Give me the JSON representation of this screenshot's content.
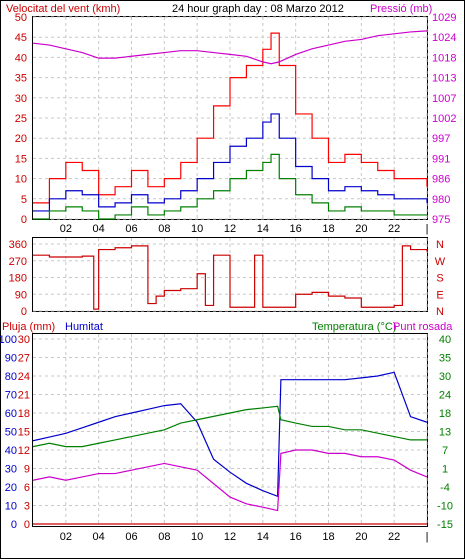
{
  "header": {
    "left_label": "Velocitat del vent (kmh)",
    "title": "24 hour graph day : 08 Marzo 2012",
    "right_label": "Pressió (mb)"
  },
  "colors": {
    "wind_gust": "#ff0000",
    "wind_avg": "#0000cc",
    "wind_min": "#008000",
    "pressure": "#cc00cc",
    "direction": "#cc0000",
    "humidity": "#0000cc",
    "temperature": "#008000",
    "dewpoint": "#cc00cc",
    "rain": "#cc0000",
    "grid": "#c8c8c8",
    "frame": "#000000"
  },
  "x_ticks": [
    "02",
    "04",
    "06",
    "08",
    "10",
    "12",
    "14",
    "16",
    "18",
    "20",
    "22",
    "|"
  ],
  "chart_data": [
    {
      "type": "line",
      "name": "wind-pressure",
      "title": "24 hour graph day : 08 Marzo 2012",
      "ylabel_left": "Velocitat del vent (kmh)",
      "ylabel_right": "Pressió (mb)",
      "y_left_ticks": [
        "0",
        "5",
        "10",
        "15",
        "20",
        "25",
        "30",
        "35",
        "40",
        "45",
        "50"
      ],
      "y_left_range": [
        0,
        50
      ],
      "y_right_ticks": [
        "975",
        "980",
        "986",
        "991",
        "997",
        "1002",
        "1007",
        "1013",
        "1018",
        "1024",
        "1029"
      ],
      "y_right_range": [
        975,
        1029
      ],
      "x_hours": [
        0,
        1,
        2,
        3,
        4,
        5,
        6,
        7,
        8,
        9,
        10,
        11,
        12,
        13,
        14,
        14.5,
        15,
        16,
        17,
        18,
        19,
        20,
        21,
        22,
        23,
        24
      ],
      "series": [
        {
          "key": "gust",
          "axis": "left",
          "values": [
            4,
            10,
            14,
            12,
            6,
            8,
            12,
            8,
            10,
            14,
            20,
            28,
            35,
            38,
            42,
            46,
            38,
            26,
            20,
            14,
            16,
            14,
            12,
            10,
            10,
            8
          ]
        },
        {
          "key": "avg",
          "axis": "left",
          "values": [
            2,
            5,
            7,
            6,
            3,
            4,
            6,
            4,
            5,
            7,
            10,
            14,
            18,
            20,
            24,
            26,
            20,
            13,
            10,
            7,
            8,
            7,
            6,
            5,
            5,
            4
          ]
        },
        {
          "key": "min",
          "axis": "left",
          "values": [
            0,
            2,
            3,
            2,
            0,
            1,
            3,
            1,
            2,
            3,
            5,
            7,
            10,
            12,
            14,
            16,
            10,
            6,
            4,
            2,
            3,
            2,
            2,
            1,
            1,
            1
          ]
        },
        {
          "key": "pressure",
          "axis": "right",
          "values": [
            1022,
            1021.5,
            1020.5,
            1019.5,
            1018,
            1018,
            1018.5,
            1019,
            1019.5,
            1020,
            1020,
            1019.5,
            1019,
            1018.5,
            1017,
            1016.5,
            1017,
            1019,
            1020.5,
            1021.5,
            1022.5,
            1023,
            1024,
            1024.5,
            1025,
            1025.3
          ]
        }
      ]
    },
    {
      "type": "line",
      "name": "wind-direction",
      "y_left_ticks": [
        "0",
        "90",
        "180",
        "270",
        "360"
      ],
      "y_left_range": [
        0,
        360
      ],
      "y_right_labels": [
        "N",
        "W",
        "S",
        "E",
        "N"
      ],
      "x_hours": [
        0,
        1,
        2,
        3,
        3.7,
        4,
        5,
        6,
        7,
        7.5,
        8,
        9,
        10,
        10.5,
        11,
        12,
        13,
        13.5,
        14,
        15,
        16,
        17,
        18,
        19,
        20,
        21,
        22,
        22.5,
        23,
        24
      ],
      "series": [
        {
          "key": "direction",
          "values": [
            300,
            290,
            290,
            295,
            10,
            330,
            340,
            350,
            40,
            80,
            110,
            120,
            200,
            30,
            300,
            20,
            20,
            300,
            20,
            20,
            90,
            100,
            80,
            70,
            20,
            20,
            30,
            350,
            330,
            320
          ]
        }
      ]
    },
    {
      "type": "line",
      "name": "rain-humidity-temperature",
      "header_left_1": "Pluja (mm)",
      "header_left_2": "Humitat",
      "header_right_1": "Temperatura (°C)",
      "header_right_2": "Punt rosada",
      "y_humidity_ticks": [
        "0",
        "10",
        "20",
        "30",
        "40",
        "50",
        "60",
        "70",
        "80",
        "90",
        "100"
      ],
      "y_rain_ticks": [
        "0",
        "3",
        "6",
        "9",
        "12",
        "15",
        "18",
        "21",
        "24",
        "27",
        "30"
      ],
      "y_temp_ticks": [
        "-15",
        "-10",
        "-4",
        "1",
        "7",
        "13",
        "18",
        "24",
        "30",
        "35",
        "40"
      ],
      "humidity_range": [
        0,
        100
      ],
      "temp_range": [
        -15,
        40
      ],
      "x_hours": [
        0,
        1,
        2,
        3,
        4,
        5,
        6,
        7,
        8,
        9,
        10,
        11,
        12,
        13,
        14,
        14.9,
        15.1,
        16,
        17,
        18,
        19,
        20,
        21,
        22,
        23,
        24
      ],
      "series": [
        {
          "key": "humidity",
          "axis": "humidity",
          "values": [
            45,
            47,
            49,
            52,
            55,
            58,
            60,
            62,
            64,
            65,
            55,
            35,
            28,
            22,
            18,
            15,
            78,
            78,
            78,
            78,
            78,
            79,
            80,
            82,
            58,
            55
          ]
        },
        {
          "key": "temperature",
          "axis": "temp",
          "values": [
            8,
            9,
            8,
            8,
            9,
            10,
            11,
            12,
            13,
            15,
            16,
            17,
            18,
            19,
            19.5,
            20,
            16,
            15,
            14,
            14,
            13,
            13,
            12,
            11,
            10,
            10
          ]
        },
        {
          "key": "dewpoint",
          "axis": "temp",
          "values": [
            -2,
            -1,
            -2,
            -1,
            0,
            0,
            1,
            2,
            3,
            2,
            1,
            -3,
            -7,
            -9,
            -10,
            -11,
            6,
            7,
            7,
            6,
            6,
            5,
            5,
            4,
            1,
            -1
          ]
        },
        {
          "key": "rain",
          "axis": "humidity",
          "values": [
            0,
            0,
            0,
            0,
            0,
            0,
            0,
            0,
            0,
            0,
            0,
            0,
            0,
            0,
            0,
            0,
            0,
            0,
            0,
            0,
            0,
            0,
            0,
            0,
            0,
            0
          ]
        }
      ]
    }
  ]
}
